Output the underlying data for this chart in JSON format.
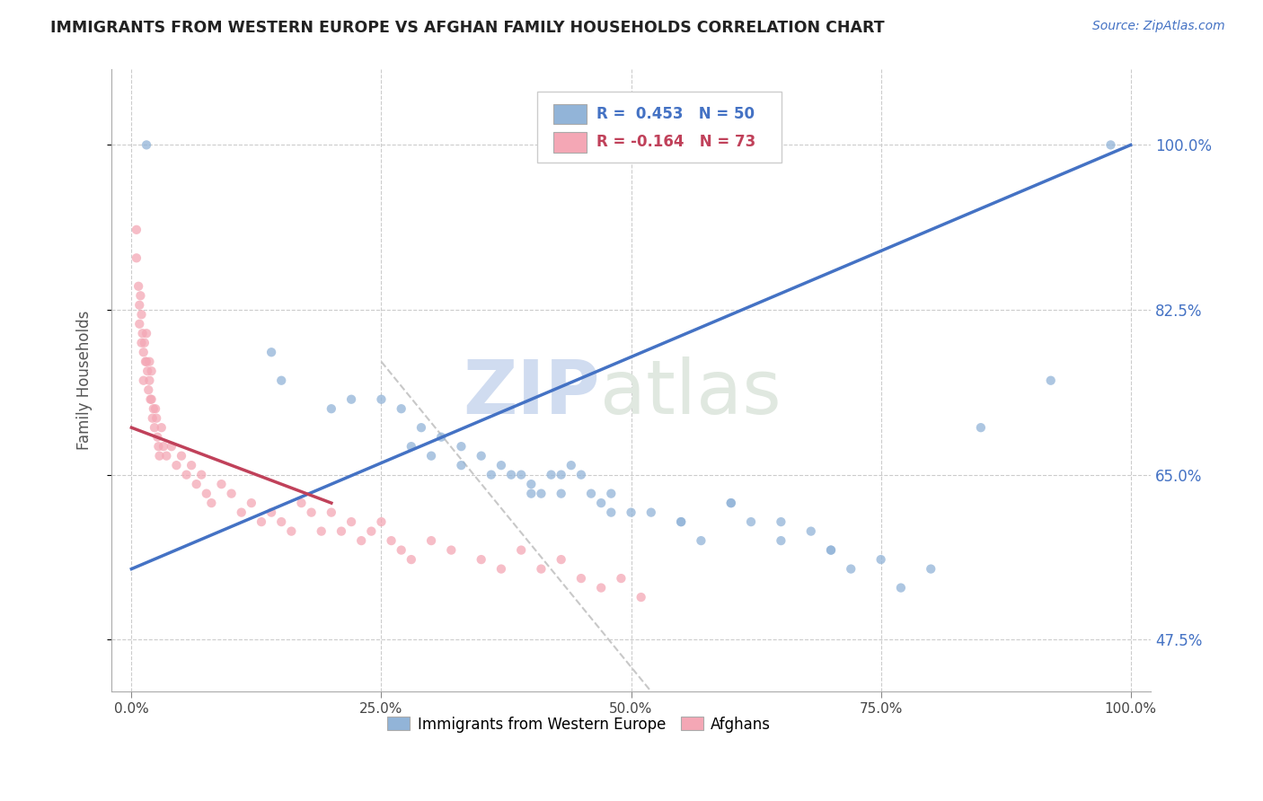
{
  "title": "IMMIGRANTS FROM WESTERN EUROPE VS AFGHAN FAMILY HOUSEHOLDS CORRELATION CHART",
  "source": "Source: ZipAtlas.com",
  "ylabel": "Family Households",
  "watermark_part1": "ZIP",
  "watermark_part2": "atlas",
  "legend_blue_label": "Immigrants from Western Europe",
  "legend_pink_label": "Afghans",
  "R_blue": 0.453,
  "N_blue": 50,
  "R_pink": -0.164,
  "N_pink": 73,
  "blue_color": "#92B4D8",
  "pink_color": "#F4A7B5",
  "trend_blue_color": "#4472C4",
  "trend_pink_color": "#C0415A",
  "dashed_color": "#C8C8C8",
  "xlim": [
    -2.0,
    102.0
  ],
  "ylim": [
    42.0,
    108.0
  ],
  "yticks": [
    47.5,
    65.0,
    82.5,
    100.0
  ],
  "xticks": [
    0.0,
    25.0,
    50.0,
    75.0,
    100.0
  ],
  "blue_x": [
    1.5,
    14,
    22,
    25,
    27,
    29,
    31,
    33,
    35,
    37,
    38,
    39,
    40,
    41,
    42,
    43,
    44,
    45,
    46,
    47,
    48,
    50,
    52,
    55,
    57,
    60,
    62,
    65,
    68,
    70,
    72,
    75,
    77,
    80,
    15,
    20,
    28,
    30,
    33,
    36,
    40,
    43,
    48,
    55,
    60,
    65,
    70,
    85,
    92,
    98
  ],
  "blue_y": [
    100,
    78,
    73,
    73,
    72,
    70,
    69,
    68,
    67,
    66,
    65,
    65,
    64,
    63,
    65,
    65,
    66,
    65,
    63,
    62,
    63,
    61,
    61,
    60,
    58,
    62,
    60,
    58,
    59,
    57,
    55,
    56,
    53,
    55,
    75,
    72,
    68,
    67,
    66,
    65,
    63,
    63,
    61,
    60,
    62,
    60,
    57,
    70,
    75,
    100
  ],
  "pink_x": [
    0.5,
    0.5,
    0.7,
    0.8,
    0.8,
    0.9,
    1.0,
    1.0,
    1.1,
    1.2,
    1.2,
    1.3,
    1.4,
    1.5,
    1.5,
    1.6,
    1.7,
    1.8,
    1.8,
    1.9,
    2.0,
    2.0,
    2.1,
    2.2,
    2.3,
    2.4,
    2.5,
    2.6,
    2.7,
    2.8,
    3.0,
    3.2,
    3.5,
    4.0,
    4.5,
    5.0,
    5.5,
    6.0,
    6.5,
    7.0,
    7.5,
    8.0,
    9.0,
    10.0,
    11.0,
    12.0,
    13.0,
    14.0,
    15.0,
    16.0,
    17.0,
    18.0,
    19.0,
    20.0,
    21.0,
    22.0,
    23.0,
    24.0,
    25.0,
    26.0,
    27.0,
    28.0,
    30.0,
    32.0,
    35.0,
    37.0,
    39.0,
    41.0,
    43.0,
    45.0,
    47.0,
    49.0,
    51.0
  ],
  "pink_y": [
    91,
    88,
    85,
    83,
    81,
    84,
    82,
    79,
    80,
    78,
    75,
    79,
    77,
    80,
    77,
    76,
    74,
    77,
    75,
    73,
    76,
    73,
    71,
    72,
    70,
    72,
    71,
    69,
    68,
    67,
    70,
    68,
    67,
    68,
    66,
    67,
    65,
    66,
    64,
    65,
    63,
    62,
    64,
    63,
    61,
    62,
    60,
    61,
    60,
    59,
    62,
    61,
    59,
    61,
    59,
    60,
    58,
    59,
    60,
    58,
    57,
    56,
    58,
    57,
    56,
    55,
    57,
    55,
    56,
    54,
    53,
    54,
    52
  ],
  "blue_trend_x0": 0,
  "blue_trend_x1": 100,
  "blue_trend_y0": 55,
  "blue_trend_y1": 100,
  "pink_trend_x0": 0,
  "pink_trend_x1": 20,
  "pink_trend_y0": 70,
  "pink_trend_y1": 62,
  "dash_x0": 25,
  "dash_x1": 52,
  "dash_y0": 77,
  "dash_y1": 42
}
